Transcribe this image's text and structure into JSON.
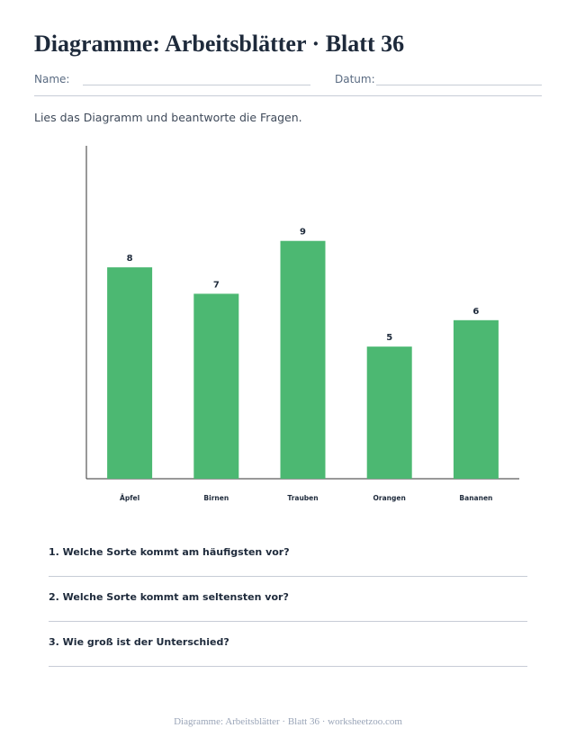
{
  "header": {
    "title": "Diagramme: Arbeitsblätter · Blatt 36",
    "name_label": "Name:",
    "date_label": "Datum:"
  },
  "instructions": "Lies das Diagramm und beantworte die Fragen.",
  "chart_data": {
    "type": "bar",
    "categories": [
      "Äpfel",
      "Birnen",
      "Trauben",
      "Orangen",
      "Bananen"
    ],
    "values": [
      8,
      7,
      9,
      5,
      6
    ],
    "title": "",
    "xlabel": "",
    "ylabel": "",
    "ylim": [
      0,
      12.6
    ],
    "grid": false,
    "bar_color": "#4cb872",
    "data_labels": true
  },
  "questions": [
    "1. Welche Sorte kommt am häufigsten vor?",
    "2. Welche Sorte kommt am seltensten vor?",
    "3. Wie groß ist der Unterschied?"
  ],
  "footer": "Diagramme: Arbeitsblätter · Blatt 36 · worksheetzoo.com"
}
